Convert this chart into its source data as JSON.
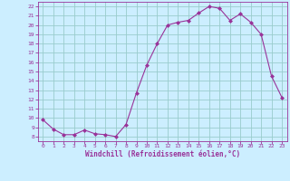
{
  "x": [
    0,
    1,
    2,
    3,
    4,
    5,
    6,
    7,
    8,
    9,
    10,
    11,
    12,
    13,
    14,
    15,
    16,
    17,
    18,
    19,
    20,
    21,
    22,
    23
  ],
  "y": [
    9.8,
    8.8,
    8.2,
    8.2,
    8.7,
    8.3,
    8.2,
    8.0,
    9.3,
    12.7,
    15.7,
    18.0,
    20.0,
    20.3,
    20.5,
    21.3,
    22.0,
    21.8,
    20.5,
    21.2,
    20.3,
    19.0,
    14.5,
    12.2
  ],
  "line_color": "#993399",
  "marker": "D",
  "marker_size": 2,
  "bg_color": "#cceeff",
  "grid_color": "#99cccc",
  "xlabel": "Windchill (Refroidissement éolien,°C)",
  "xlabel_color": "#993399",
  "tick_color": "#993399",
  "xlim": [
    -0.5,
    23.5
  ],
  "ylim": [
    7.5,
    22.5
  ],
  "yticks": [
    8,
    9,
    10,
    11,
    12,
    13,
    14,
    15,
    16,
    17,
    18,
    19,
    20,
    21,
    22
  ],
  "xticks": [
    0,
    1,
    2,
    3,
    4,
    5,
    6,
    7,
    8,
    9,
    10,
    11,
    12,
    13,
    14,
    15,
    16,
    17,
    18,
    19,
    20,
    21,
    22,
    23
  ]
}
